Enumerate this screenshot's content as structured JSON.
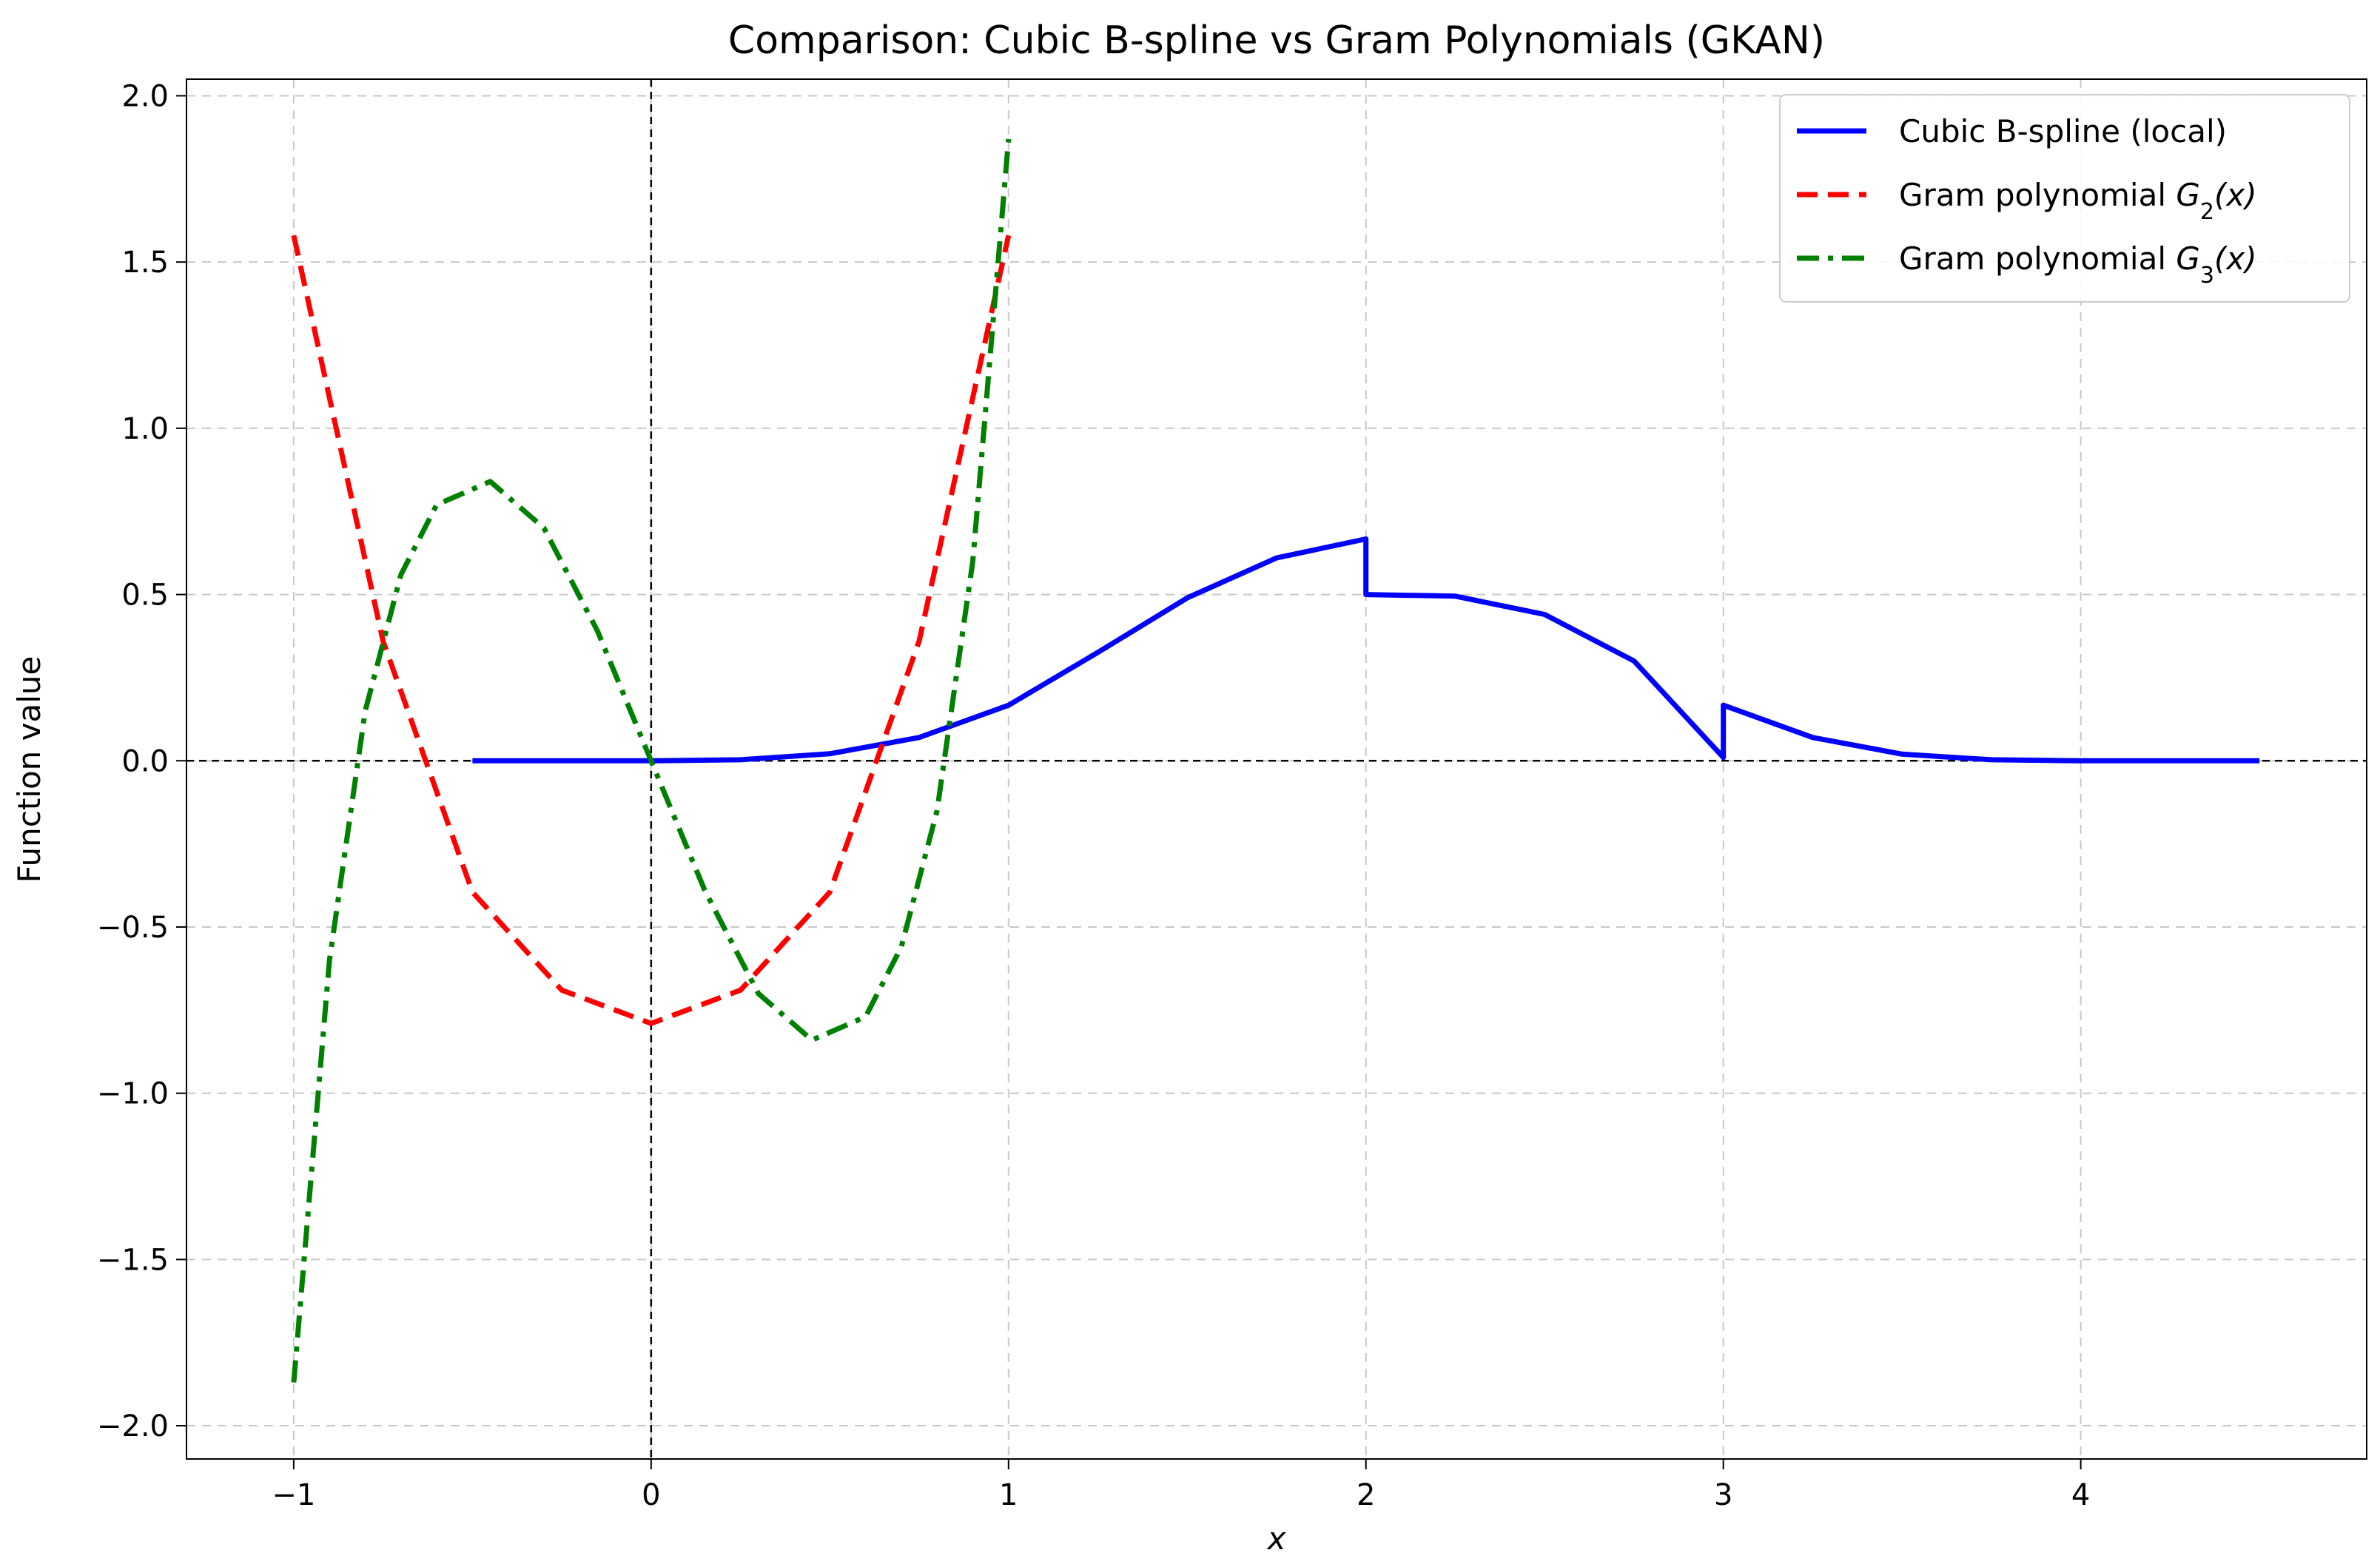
{
  "chart_data": {
    "type": "line",
    "title": "Comparison: Cubic B-spline vs Gram Polynomials (GKAN)",
    "xlabel": "x",
    "ylabel": "Function value",
    "xlim": [
      -1.3,
      4.8
    ],
    "ylim": [
      -2.1,
      2.05
    ],
    "xticks": [
      -1,
      0,
      1,
      2,
      3,
      4
    ],
    "yticks": [
      -2.0,
      -1.5,
      -1.0,
      -0.5,
      0.0,
      0.5,
      1.0,
      1.5,
      2.0
    ],
    "xtick_labels": [
      "−1",
      "0",
      "1",
      "2",
      "3",
      "4"
    ],
    "ytick_labels": [
      "−2.0",
      "−1.5",
      "−1.0",
      "−0.5",
      "0.0",
      "0.5",
      "1.0",
      "1.5",
      "2.0"
    ],
    "grid": true,
    "legend_position": "top-right",
    "reference_lines": {
      "horizontal_y": 0.0,
      "vertical_x": 0.0
    },
    "series": [
      {
        "name": "Cubic B-spline (local)",
        "color": "#0000ff",
        "style": "solid",
        "x": [
          -0.5,
          0.0,
          0.25,
          0.5,
          0.75,
          1.0,
          1.25,
          1.5,
          1.75,
          2.0,
          2.0,
          2.25,
          2.5,
          2.75,
          3.0,
          3.0,
          3.25,
          3.5,
          3.75,
          4.0,
          4.5
        ],
        "y": [
          0.0,
          0.0,
          0.003,
          0.021,
          0.07,
          0.167,
          0.326,
          0.49,
          0.61,
          0.667,
          0.5,
          0.495,
          0.44,
          0.3,
          0.01,
          0.167,
          0.07,
          0.02,
          0.003,
          0.0,
          0.0
        ]
      },
      {
        "name": "Gram polynomial G2(x)",
        "legend_main": "Gram polynomial ",
        "legend_math": "G",
        "legend_sub": "2",
        "legend_tail": "(x)",
        "color": "#ff0000",
        "style": "dashed",
        "x": [
          -1.0,
          -0.75,
          -0.5,
          -0.25,
          0.0,
          0.25,
          0.5,
          0.75,
          1.0
        ],
        "y": [
          1.58,
          0.36,
          -0.395,
          -0.69,
          -0.79,
          -0.69,
          -0.395,
          0.36,
          1.58
        ]
      },
      {
        "name": "Gram polynomial G3(x)",
        "legend_main": "Gram polynomial ",
        "legend_math": "G",
        "legend_sub": "3",
        "legend_tail": "(x)",
        "color": "#008000",
        "style": "dashdot",
        "x": [
          -1.0,
          -0.9,
          -0.8,
          -0.7,
          -0.6,
          -0.45,
          -0.3,
          -0.15,
          0.0,
          0.15,
          0.3,
          0.45,
          0.6,
          0.7,
          0.8,
          0.9,
          1.0
        ],
        "y": [
          -1.87,
          -0.6,
          0.15,
          0.56,
          0.77,
          0.84,
          0.7,
          0.39,
          0.0,
          -0.39,
          -0.7,
          -0.84,
          -0.77,
          -0.56,
          -0.15,
          0.6,
          1.87
        ]
      }
    ]
  }
}
